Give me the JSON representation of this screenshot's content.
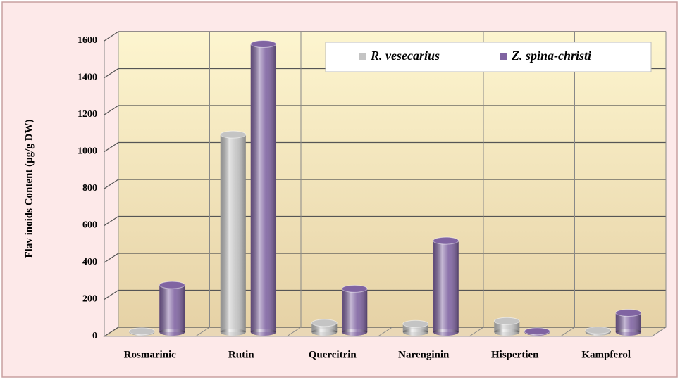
{
  "chart_data": {
    "type": "bar",
    "y_label": "Flav inoids Content (µg/g DW)",
    "categories": [
      "Rosmarinic",
      "Rutin",
      "Quercitrin",
      "Narenginin",
      "Hispertien",
      "Kampferol"
    ],
    "series": [
      {
        "name": "R. vesecarius",
        "color": "#c4c4c4",
        "values": [
          5,
          1070,
          50,
          45,
          60,
          10
        ]
      },
      {
        "name": "Z. spina-christi",
        "color": "#8064a2",
        "values": [
          255,
          1560,
          235,
          495,
          5,
          105
        ]
      }
    ],
    "ylim": [
      0,
      1600
    ],
    "yticks": [
      0,
      200,
      400,
      600,
      800,
      1000,
      1200,
      1400,
      1600
    ],
    "grid": true,
    "legend": "top-right"
  }
}
